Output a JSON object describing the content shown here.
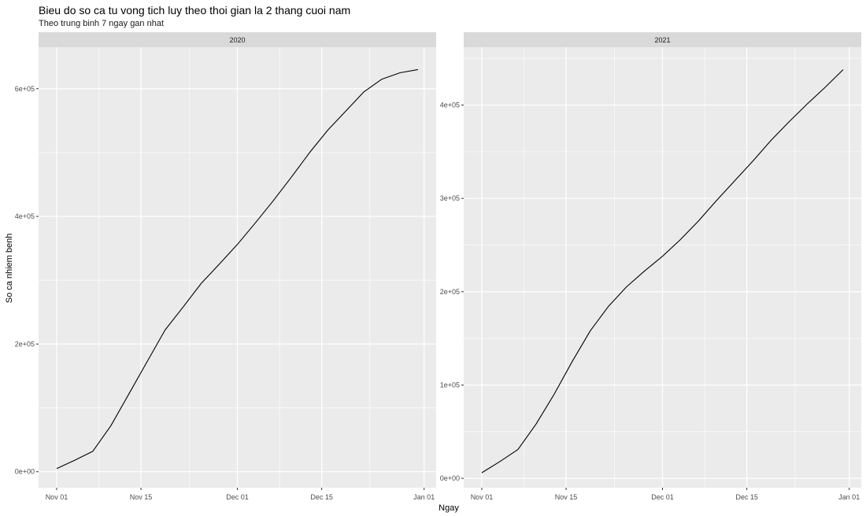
{
  "title": "Bieu do so ca tu vong tich luy theo thoi gian la 2 thang cuoi nam",
  "subtitle": "Theo trung binh 7 ngay gan nhat",
  "xlabel": "Ngay",
  "ylabel": "So ca nhiem benh",
  "colors": {
    "panel_bg": "#ebebeb",
    "strip_bg": "#d9d9d9",
    "grid": "#ffffff",
    "line": "#000000",
    "axis_text": "#4d4d4d"
  },
  "chart_data": [
    {
      "type": "line",
      "facet": "2020",
      "x_tick_labels": [
        "Nov 01",
        "Nov 15",
        "Dec 01",
        "Dec 15",
        "Jan 01"
      ],
      "x_ticks": [
        "2020-11-01",
        "2020-11-15",
        "2020-12-01",
        "2020-12-15",
        "2021-01-01"
      ],
      "xlim": [
        "2020-10-29",
        "2021-01-03"
      ],
      "y_tick_labels": [
        "0e+00",
        "2e+05",
        "4e+05",
        "6e+05"
      ],
      "y_ticks": [
        0,
        200000,
        400000,
        600000
      ],
      "ylim": [
        -25000,
        665000
      ],
      "series": [
        {
          "x": [
            "2020-11-01",
            "2020-11-04",
            "2020-11-07",
            "2020-11-10",
            "2020-11-13",
            "2020-11-16",
            "2020-11-19",
            "2020-11-22",
            "2020-11-25",
            "2020-11-28",
            "2020-12-01",
            "2020-12-04",
            "2020-12-07",
            "2020-12-10",
            "2020-12-13",
            "2020-12-16",
            "2020-12-19",
            "2020-12-22",
            "2020-12-25",
            "2020-12-28",
            "2020-12-31"
          ],
          "y": [
            5000,
            18000,
            32000,
            72000,
            122000,
            172000,
            222000,
            258000,
            295000,
            325000,
            356000,
            390000,
            425000,
            462000,
            500000,
            535000,
            565000,
            595000,
            615000,
            625000,
            630000
          ]
        }
      ]
    },
    {
      "type": "line",
      "facet": "2021",
      "x_tick_labels": [
        "Nov 01",
        "Nov 15",
        "Dec 01",
        "Dec 15",
        "Jan 01"
      ],
      "x_ticks": [
        "2021-11-01",
        "2021-11-15",
        "2021-12-01",
        "2021-12-15",
        "2022-01-01"
      ],
      "xlim": [
        "2021-10-29",
        "2022-01-03"
      ],
      "y_tick_labels": [
        "0e+00",
        "1e+05",
        "2e+05",
        "3e+05",
        "4e+05"
      ],
      "y_ticks": [
        0,
        100000,
        200000,
        300000,
        400000
      ],
      "ylim": [
        -10000,
        462000
      ],
      "series": [
        {
          "x": [
            "2021-11-01",
            "2021-11-04",
            "2021-11-07",
            "2021-11-10",
            "2021-11-13",
            "2021-11-16",
            "2021-11-19",
            "2021-11-22",
            "2021-11-25",
            "2021-11-28",
            "2021-12-01",
            "2021-12-04",
            "2021-12-07",
            "2021-12-10",
            "2021-12-13",
            "2021-12-16",
            "2021-12-19",
            "2021-12-22",
            "2021-12-25",
            "2021-12-28",
            "2021-12-31"
          ],
          "y": [
            6000,
            18000,
            31000,
            58000,
            90000,
            125000,
            158000,
            184000,
            205000,
            222000,
            238000,
            256000,
            276000,
            298000,
            319000,
            340000,
            362000,
            382000,
            401000,
            419000,
            438000
          ]
        }
      ]
    }
  ]
}
